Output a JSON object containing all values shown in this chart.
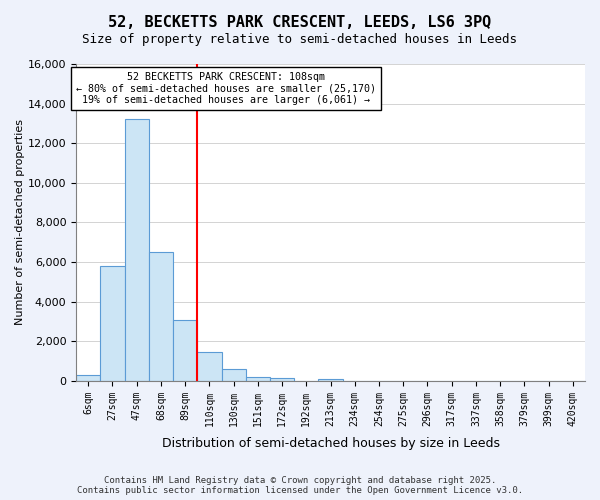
{
  "title": "52, BECKETTS PARK CRESCENT, LEEDS, LS6 3PQ",
  "subtitle": "Size of property relative to semi-detached houses in Leeds",
  "xlabel": "Distribution of semi-detached houses by size in Leeds",
  "ylabel": "Number of semi-detached properties",
  "bin_labels": [
    "6sqm",
    "27sqm",
    "47sqm",
    "68sqm",
    "89sqm",
    "110sqm",
    "130sqm",
    "151sqm",
    "172sqm",
    "192sqm",
    "213sqm",
    "234sqm",
    "254sqm",
    "275sqm",
    "296sqm",
    "317sqm",
    "337sqm",
    "358sqm",
    "379sqm",
    "399sqm",
    "420sqm"
  ],
  "bar_values": [
    300,
    5800,
    13200,
    6500,
    3100,
    1450,
    620,
    220,
    150,
    0,
    80,
    0,
    0,
    0,
    0,
    0,
    0,
    0,
    0,
    0,
    0
  ],
  "bar_color": "#cce5f5",
  "bar_edge_color": "#5b9bd5",
  "vline_x_index": 4.5,
  "vline_color": "red",
  "annotation_title": "52 BECKETTS PARK CRESCENT: 108sqm",
  "annotation_line1": "← 80% of semi-detached houses are smaller (25,170)",
  "annotation_line2": "19% of semi-detached houses are larger (6,061) →",
  "ylim": [
    0,
    16000
  ],
  "yticks": [
    0,
    2000,
    4000,
    6000,
    8000,
    10000,
    12000,
    14000,
    16000
  ],
  "footer_line1": "Contains HM Land Registry data © Crown copyright and database right 2025.",
  "footer_line2": "Contains public sector information licensed under the Open Government Licence v3.0.",
  "background_color": "#eef2fb",
  "plot_bg_color": "#ffffff"
}
